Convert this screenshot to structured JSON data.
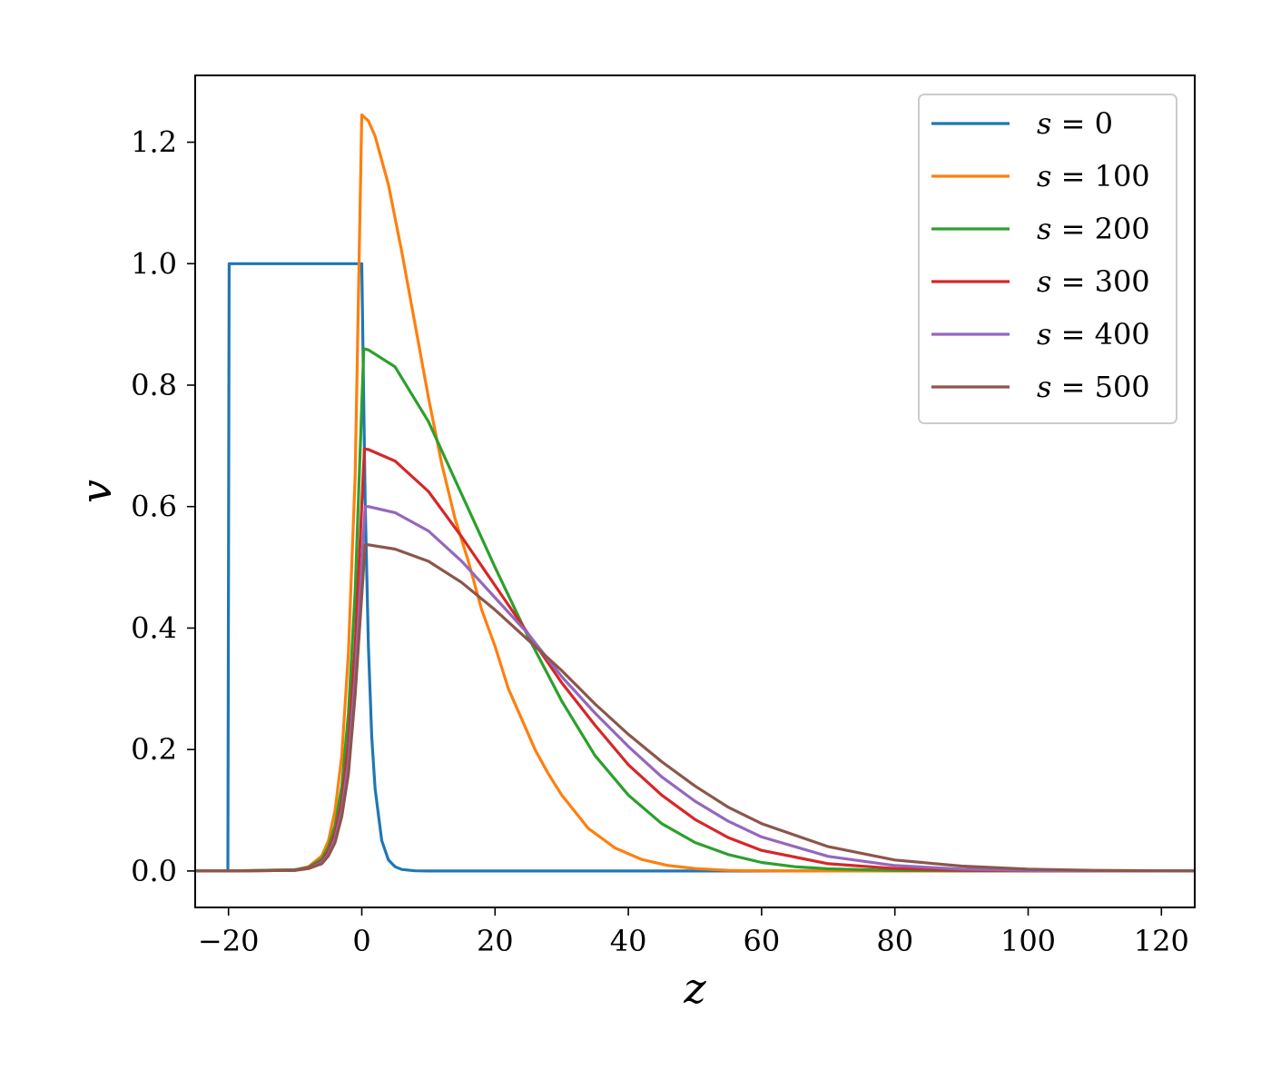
{
  "chart_data": {
    "type": "line",
    "title": "",
    "xlabel": "z",
    "ylabel": "v",
    "xlim": [
      -25,
      125
    ],
    "ylim": [
      -0.06,
      1.31
    ],
    "xticks": [
      -20,
      0,
      20,
      40,
      60,
      80,
      100,
      120
    ],
    "xtick_labels": [
      "−20",
      "0",
      "20",
      "40",
      "60",
      "80",
      "100",
      "120"
    ],
    "yticks": [
      0.0,
      0.2,
      0.4,
      0.6,
      0.8,
      1.0,
      1.2
    ],
    "ytick_labels": [
      "0.0",
      "0.2",
      "0.4",
      "0.6",
      "0.8",
      "1.0",
      "1.2"
    ],
    "grid": false,
    "legend_position": "top-right",
    "series": [
      {
        "name": "s = 0",
        "legend_var": "s",
        "legend_value": "0",
        "color": "#1f77b4",
        "x": [
          -25,
          -20.1,
          -19.9,
          0,
          0.5,
          1,
          1.5,
          2,
          3,
          4,
          5,
          6,
          8,
          10,
          125
        ],
        "y": [
          0,
          0,
          1.0,
          1.0,
          0.61,
          0.37,
          0.22,
          0.135,
          0.05,
          0.018,
          0.007,
          0.0025,
          0.0003,
          0,
          0
        ]
      },
      {
        "name": "s = 100",
        "legend_var": "s",
        "legend_value": "100",
        "color": "#ff7f0e",
        "x": [
          -25,
          -20,
          -10,
          -8,
          -6,
          -5,
          -4,
          -3,
          -2,
          -1,
          0,
          1,
          2,
          4,
          6,
          8,
          10,
          12,
          14,
          16,
          18,
          20,
          22,
          24,
          26,
          28,
          30,
          34,
          38,
          42,
          46,
          50,
          55,
          60,
          70,
          125
        ],
        "y": [
          0,
          0,
          0.002,
          0.007,
          0.025,
          0.05,
          0.1,
          0.19,
          0.36,
          0.65,
          1.245,
          1.235,
          1.21,
          1.13,
          1.02,
          0.9,
          0.78,
          0.67,
          0.58,
          0.51,
          0.43,
          0.37,
          0.3,
          0.25,
          0.2,
          0.16,
          0.125,
          0.07,
          0.038,
          0.019,
          0.009,
          0.004,
          0.001,
          0.0003,
          0,
          0
        ]
      },
      {
        "name": "s = 200",
        "legend_var": "s",
        "legend_value": "200",
        "color": "#2ca02c",
        "x": [
          -25,
          -20,
          -10,
          -8,
          -6,
          -5,
          -4,
          -3,
          -2,
          -1,
          0.3,
          1,
          5,
          10,
          15,
          20,
          25,
          30,
          35,
          40,
          45,
          50,
          55,
          60,
          65,
          70,
          80,
          90,
          125
        ],
        "y": [
          0,
          0,
          0.002,
          0.006,
          0.02,
          0.04,
          0.075,
          0.14,
          0.26,
          0.46,
          0.86,
          0.858,
          0.83,
          0.74,
          0.62,
          0.5,
          0.385,
          0.28,
          0.19,
          0.125,
          0.078,
          0.047,
          0.027,
          0.014,
          0.007,
          0.0035,
          0.0008,
          0.0001,
          0
        ]
      },
      {
        "name": "s = 300",
        "legend_var": "s",
        "legend_value": "300",
        "color": "#d62728",
        "x": [
          -25,
          -20,
          -10,
          -8,
          -6,
          -5,
          -4,
          -3,
          -2,
          -1,
          0.4,
          1,
          5,
          10,
          15,
          20,
          25,
          30,
          35,
          40,
          45,
          50,
          55,
          60,
          70,
          80,
          90,
          100,
          125
        ],
        "y": [
          0,
          0,
          0.001,
          0.005,
          0.016,
          0.033,
          0.062,
          0.115,
          0.21,
          0.37,
          0.695,
          0.694,
          0.675,
          0.625,
          0.55,
          0.47,
          0.39,
          0.31,
          0.24,
          0.175,
          0.125,
          0.085,
          0.055,
          0.034,
          0.012,
          0.004,
          0.001,
          0.0002,
          0
        ]
      },
      {
        "name": "s = 400",
        "legend_var": "s",
        "legend_value": "400",
        "color": "#9467bd",
        "x": [
          -25,
          -20,
          -10,
          -8,
          -6,
          -5,
          -4,
          -3,
          -2,
          -1,
          0.5,
          1,
          5,
          10,
          15,
          20,
          25,
          30,
          35,
          40,
          45,
          50,
          55,
          60,
          70,
          80,
          90,
          100,
          110,
          125
        ],
        "y": [
          0,
          0,
          0.001,
          0.004,
          0.014,
          0.028,
          0.053,
          0.1,
          0.18,
          0.32,
          0.6,
          0.6,
          0.59,
          0.56,
          0.51,
          0.45,
          0.39,
          0.32,
          0.26,
          0.205,
          0.155,
          0.115,
          0.082,
          0.056,
          0.024,
          0.009,
          0.003,
          0.0009,
          0.0002,
          0
        ]
      },
      {
        "name": "s = 500",
        "legend_var": "s",
        "legend_value": "500",
        "color": "#8c564b",
        "x": [
          -25,
          -20,
          -10,
          -8,
          -6,
          -5,
          -4,
          -3,
          -2,
          -1,
          0.5,
          1,
          5,
          10,
          15,
          20,
          25,
          30,
          35,
          40,
          45,
          50,
          55,
          60,
          70,
          80,
          90,
          100,
          110,
          125
        ],
        "y": [
          0,
          0,
          0.001,
          0.004,
          0.012,
          0.025,
          0.047,
          0.09,
          0.16,
          0.29,
          0.537,
          0.537,
          0.53,
          0.51,
          0.475,
          0.43,
          0.38,
          0.33,
          0.275,
          0.225,
          0.18,
          0.14,
          0.105,
          0.078,
          0.04,
          0.018,
          0.008,
          0.003,
          0.001,
          0
        ]
      }
    ]
  }
}
